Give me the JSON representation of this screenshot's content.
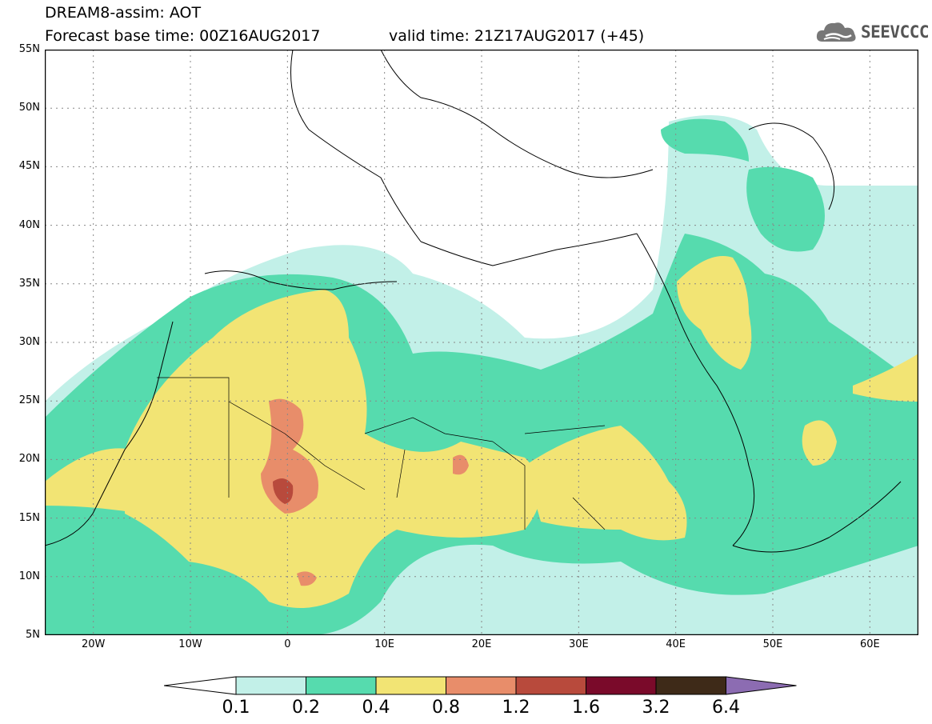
{
  "header": {
    "title_line1": "DREAM8-assim: AOT",
    "title_line2": "Forecast base time: 00Z16AUG2017",
    "valid_text": "valid time: 21Z17AUG2017 (+45)",
    "logo_text": "SEEVCCC",
    "logo_icon": "cloud-icon"
  },
  "map": {
    "lon_range": [
      -25,
      65
    ],
    "lat_range": [
      5,
      55
    ],
    "lat_labels": [
      "55N",
      "50N",
      "45N",
      "40N",
      "35N",
      "30N",
      "25N",
      "20N",
      "15N",
      "10N",
      "5N"
    ],
    "lon_labels": [
      "20W",
      "10W",
      "0",
      "10E",
      "20E",
      "30E",
      "40E",
      "50E",
      "60E"
    ],
    "grid": "dotted"
  },
  "colorbar": {
    "labels": [
      "0.1",
      "0.2",
      "0.4",
      "0.8",
      "1.2",
      "1.6",
      "3.2",
      "6.4"
    ],
    "colors": [
      "#c2f0e8",
      "#56dbae",
      "#f2e474",
      "#e88d6a",
      "#b84a3c",
      "#7a0a2a",
      "#3e2a18",
      "#8c6cb2"
    ],
    "left_arrow_color": "#ffffff"
  }
}
